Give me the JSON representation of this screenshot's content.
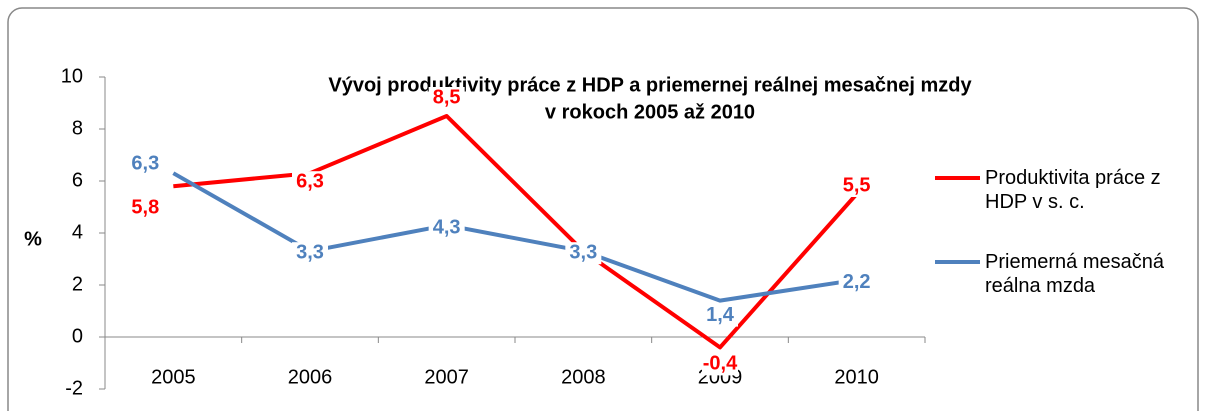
{
  "chart_data": {
    "type": "line",
    "title": [
      "Vývoj produktivity práce z HDP a priemernej reálnej mesačnej mzdy",
      "v rokoch 2005 až 2010"
    ],
    "y_label": "%",
    "categories": [
      "2005",
      "2006",
      "2007",
      "2008",
      "2009",
      "2010"
    ],
    "series": [
      {
        "name": "Produktivita práce z HDP v s. c.",
        "color": "#ff0000",
        "values": [
          5.8,
          6.3,
          8.5,
          3.3,
          -0.4,
          5.5
        ],
        "value_labels": [
          "5,8",
          "6,3",
          "8,5",
          null,
          "-0,4",
          "5,5"
        ]
      },
      {
        "name": "Priemerná mesačná reálna mzda",
        "color": "#4f81bd",
        "values": [
          6.3,
          3.3,
          4.3,
          3.3,
          1.4,
          2.2
        ],
        "value_labels": [
          "6,3",
          "3,3",
          "4,3",
          "3,3",
          "1,4",
          "2,2"
        ]
      }
    ],
    "ylim": [
      -2,
      10
    ],
    "yticks": [
      -2,
      0,
      2,
      4,
      6,
      8,
      10
    ],
    "grid": false,
    "legend": "right"
  }
}
